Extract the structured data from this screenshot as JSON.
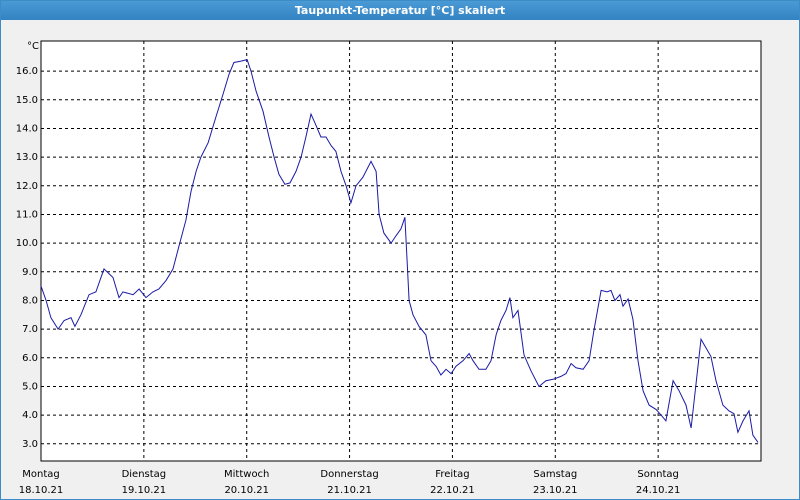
{
  "chart_data": {
    "type": "line",
    "title": "Taupunkt-Temperatur [°C] skaliert",
    "y_unit": "°C",
    "xlim": [
      0,
      168
    ],
    "xticks": [
      {
        "value": 0,
        "label": "Montag",
        "date": "18.10.21"
      },
      {
        "value": 24,
        "label": "Dienstag",
        "date": "19.10.21"
      },
      {
        "value": 48,
        "label": "Mittwoch",
        "date": "20.10.21"
      },
      {
        "value": 72,
        "label": "Donnerstag",
        "date": "21.10.21"
      },
      {
        "value": 96,
        "label": "Freitag",
        "date": "22.10.21"
      },
      {
        "value": 120,
        "label": "Samstag",
        "date": "23.10.21"
      },
      {
        "value": 144,
        "label": "Sonntag",
        "date": "24.10.21"
      }
    ],
    "ylim": [
      2.4,
      17.05
    ],
    "yticks": [
      {
        "value": 3,
        "label": "3.0"
      },
      {
        "value": 4,
        "label": "4.0"
      },
      {
        "value": 5,
        "label": "5.0"
      },
      {
        "value": 6,
        "label": "6.0"
      },
      {
        "value": 7,
        "label": "7.0"
      },
      {
        "value": 8,
        "label": "8.0"
      },
      {
        "value": 9,
        "label": "9.0"
      },
      {
        "value": 10,
        "label": "10.0"
      },
      {
        "value": 11,
        "label": "11.0"
      },
      {
        "value": 12,
        "label": "12.0"
      },
      {
        "value": 13,
        "label": "13.0"
      },
      {
        "value": 14,
        "label": "14.0"
      },
      {
        "value": 15,
        "label": "15.0"
      },
      {
        "value": 16,
        "label": "16.0"
      }
    ],
    "grid": true,
    "color": "#1a1aa6",
    "x": [
      0,
      1.2,
      2.3,
      4.0,
      5.4,
      7.0,
      7.9,
      9.3,
      11.2,
      12.8,
      14.7,
      16.8,
      18.2,
      19.1,
      21.5,
      22.9,
      24.5,
      26.1,
      27.5,
      29.2,
      30.8,
      32.2,
      33.8,
      35.0,
      36.2,
      37.3,
      39.0,
      40.8,
      42.5,
      43.9,
      45.0,
      46.7,
      48.1,
      49.0,
      50.2,
      51.8,
      53.2,
      54.4,
      55.5,
      56.9,
      58.1,
      59.5,
      60.7,
      61.8,
      63.0,
      64.2,
      65.3,
      66.5,
      67.7,
      68.8,
      70.0,
      71.2,
      72.3,
      73.5,
      75.1,
      77.0,
      78.2,
      78.9,
      80.0,
      81.7,
      82.8,
      84.0,
      84.9,
      85.9,
      86.8,
      88.2,
      89.8,
      91.0,
      92.2,
      93.3,
      94.5,
      95.7,
      96.8,
      98.5,
      99.9,
      100.8,
      102.2,
      103.8,
      105.0,
      106.2,
      107.3,
      108.5,
      109.4,
      110.1,
      111.3,
      112.7,
      114.3,
      116.2,
      117.8,
      119.5,
      121.3,
      122.5,
      123.7,
      124.8,
      126.5,
      127.9,
      129.0,
      130.7,
      132.1,
      133.0,
      133.9,
      135.1,
      135.8,
      137.0,
      138.1,
      139.3,
      140.5,
      141.9,
      143.5,
      144.7,
      145.8,
      147.5,
      148.9,
      150.5,
      151.7,
      154.0,
      156.3,
      157.5,
      159.1,
      160.5,
      161.7,
      162.6,
      163.8,
      165.2,
      166.1,
      167.3
    ],
    "values": [
      8.5,
      8.0,
      7.4,
      7.0,
      7.3,
      7.4,
      7.1,
      7.5,
      8.2,
      8.3,
      9.1,
      8.8,
      8.1,
      8.3,
      8.2,
      8.4,
      8.1,
      8.3,
      8.4,
      8.7,
      9.1,
      9.9,
      10.8,
      11.8,
      12.5,
      13.0,
      13.5,
      14.4,
      15.2,
      15.9,
      16.3,
      16.35,
      16.4,
      16.0,
      15.3,
      14.6,
      13.7,
      13.0,
      12.4,
      12.05,
      12.1,
      12.5,
      13.0,
      13.7,
      14.5,
      14.1,
      13.7,
      13.7,
      13.4,
      13.2,
      12.5,
      12.0,
      11.4,
      12.0,
      12.3,
      12.85,
      12.5,
      11.0,
      10.35,
      10.0,
      10.25,
      10.5,
      10.9,
      8.0,
      7.5,
      7.1,
      6.8,
      5.9,
      5.7,
      5.4,
      5.6,
      5.45,
      5.7,
      5.9,
      6.15,
      5.9,
      5.6,
      5.6,
      5.9,
      6.8,
      7.3,
      7.65,
      8.1,
      7.4,
      7.65,
      6.1,
      5.55,
      5.0,
      5.2,
      5.25,
      5.35,
      5.45,
      5.8,
      5.65,
      5.6,
      5.9,
      6.95,
      8.35,
      8.3,
      8.35,
      8.0,
      8.2,
      7.8,
      8.05,
      7.35,
      5.9,
      4.85,
      4.35,
      4.2,
      4.0,
      3.8,
      5.2,
      4.85,
      4.35,
      3.55,
      6.65,
      6.05,
      5.2,
      4.35,
      4.15,
      4.05,
      3.4,
      3.8,
      4.15,
      3.3,
      3.05
    ]
  }
}
